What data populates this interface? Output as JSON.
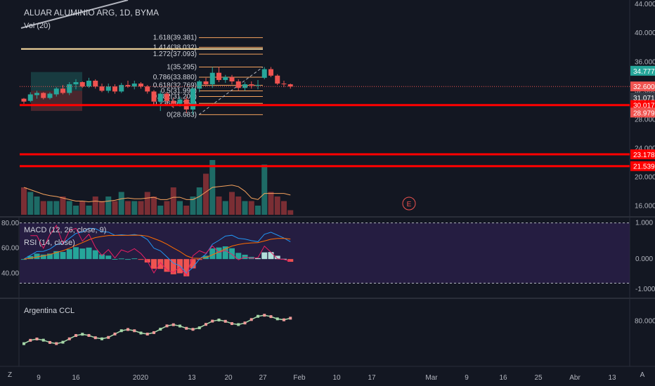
{
  "symbol_title": "ALUAR ALUMINIO ARG, 1D, BYMA",
  "volume_label": "Vol (20)",
  "macd_label": "MACD (12, 26, close, 9)",
  "rsi_label": "RSI (14, close)",
  "ccl_label": "Argentina CCL",
  "event_marker": "E",
  "colors": {
    "background": "#131722",
    "up": "#26a69a",
    "down": "#ef5350",
    "volume_up": "#1e6b66",
    "volume_down": "#7a2e34",
    "fib": "#f5a25d",
    "redline": "#ff0000",
    "rsi_band": "#2a1f4a",
    "ccl_line": "#a5d6a7"
  },
  "price_axis": [
    "44.000",
    "40.000",
    "36.000",
    "32.000",
    "28.000",
    "24.000",
    "20.000",
    "16.000"
  ],
  "macd_axis": [
    "1.000",
    "0.000",
    "-1.000"
  ],
  "rsi_axis": [
    "80.00",
    "60.00",
    "40.00"
  ],
  "ccl_axis": [
    "80.000"
  ],
  "badges": [
    {
      "label": "34.777",
      "price": 34.777,
      "color": "#26a69a"
    },
    {
      "label": "32.600",
      "price": 32.6,
      "color": "#ef5350"
    },
    {
      "label": "31.071",
      "price": 31.071,
      "color": "#363a45"
    },
    {
      "label": "30.017",
      "price": 30.017,
      "color": "#ff0000"
    },
    {
      "label": "28.979",
      "price": 28.979,
      "color": "#ef5350"
    },
    {
      "label": "23.178",
      "price": 23.178,
      "color": "#ff0000"
    },
    {
      "label": "21.539",
      "price": 21.539,
      "color": "#ff0000"
    }
  ],
  "fib_levels": [
    {
      "label": "1.618(39.381)",
      "price": 39.381
    },
    {
      "label": "1.414(38.032)",
      "price": 38.032
    },
    {
      "label": "1.272(37.093)",
      "price": 37.093
    },
    {
      "label": "1(35.295)",
      "price": 35.295
    },
    {
      "label": "0.786(33.880)",
      "price": 33.88
    },
    {
      "label": "0.618(32.769)",
      "price": 32.769
    },
    {
      "label": "0.5(31.990)",
      "price": 31.99
    },
    {
      "label": "0.382(31.208)",
      "price": 31.208
    },
    {
      "label": "0.236(30.253)",
      "price": 30.253
    },
    {
      "label": "0(28.683)",
      "price": 28.683
    }
  ],
  "x_axis_labels": [
    "9",
    "16",
    "2020",
    "13",
    "20",
    "27",
    "Feb",
    "10",
    "17",
    "Mar",
    "9",
    "16",
    "25",
    "Abr",
    "13"
  ],
  "chart_data": {
    "type": "candlestick",
    "title": "ALUAR ALUMINIO ARG, 1D, BYMA",
    "ohlc": [
      [
        30.9,
        31.0,
        30.2,
        30.5
      ],
      [
        30.6,
        31.8,
        30.4,
        31.5
      ],
      [
        31.4,
        32.0,
        30.9,
        31.7
      ],
      [
        31.7,
        31.8,
        30.8,
        31.0
      ],
      [
        31.0,
        31.8,
        30.8,
        31.6
      ],
      [
        31.5,
        32.5,
        31.2,
        32.3
      ],
      [
        32.3,
        32.8,
        31.5,
        31.7
      ],
      [
        31.7,
        33.2,
        31.4,
        32.9
      ],
      [
        32.9,
        33.6,
        32.2,
        33.2
      ],
      [
        33.2,
        33.3,
        32.4,
        32.6
      ],
      [
        32.6,
        33.8,
        32.4,
        33.4
      ],
      [
        33.4,
        33.6,
        32.3,
        32.6
      ],
      [
        32.6,
        33.0,
        31.8,
        32.0
      ],
      [
        32.0,
        33.0,
        31.7,
        32.6
      ],
      [
        32.6,
        32.9,
        31.6,
        31.9
      ],
      [
        31.9,
        33.1,
        31.7,
        32.8
      ],
      [
        32.8,
        33.4,
        32.4,
        32.6
      ],
      [
        32.6,
        33.4,
        32.2,
        33.0
      ],
      [
        33.0,
        33.2,
        32.3,
        32.6
      ],
      [
        32.6,
        32.8,
        31.6,
        31.9
      ],
      [
        31.9,
        32.1,
        30.2,
        30.5
      ],
      [
        30.5,
        32.0,
        29.2,
        31.6
      ],
      [
        31.6,
        31.8,
        30.3,
        30.6
      ],
      [
        30.6,
        31.0,
        29.6,
        30.2
      ],
      [
        30.2,
        31.2,
        29.8,
        30.8
      ],
      [
        30.8,
        31.2,
        28.9,
        29.4
      ],
      [
        29.4,
        32.5,
        28.7,
        32.3
      ],
      [
        32.3,
        33.5,
        31.8,
        33.3
      ],
      [
        33.3,
        33.8,
        32.6,
        32.9
      ],
      [
        32.9,
        35.3,
        32.4,
        34.5
      ],
      [
        34.5,
        35.3,
        33.2,
        33.5
      ],
      [
        33.5,
        34.2,
        33.1,
        33.9
      ],
      [
        33.9,
        34.2,
        32.9,
        33.3
      ],
      [
        33.3,
        33.6,
        32.0,
        32.4
      ],
      [
        32.4,
        33.2,
        32.0,
        32.9
      ],
      [
        32.9,
        33.3,
        32.3,
        32.7
      ],
      [
        32.7,
        33.5,
        32.2,
        32.8
      ],
      [
        33.8,
        35.3,
        33.6,
        35.0
      ],
      [
        35.0,
        35.3,
        33.9,
        34.1
      ],
      [
        34.1,
        34.3,
        32.8,
        33.0
      ],
      [
        33.0,
        33.4,
        32.5,
        32.9
      ],
      [
        32.9,
        33.0,
        32.3,
        32.6
      ]
    ],
    "volume": [
      6,
      5,
      4,
      3,
      3,
      3,
      4,
      3,
      2,
      3,
      2,
      4,
      3,
      4,
      3,
      5,
      3,
      3,
      3,
      5,
      4,
      2,
      3,
      6,
      3,
      2,
      4,
      6,
      9,
      12,
      4,
      3,
      5,
      4,
      3,
      3,
      2,
      11,
      5,
      4,
      3,
      1
    ],
    "horizontal_lines": [
      30.017,
      23.178,
      21.539
    ],
    "current_price": 32.6,
    "price_ylim": [
      14.5,
      44.6
    ],
    "rsi_ylim": [
      20,
      85
    ],
    "macd_ylim": [
      -1.3,
      1.4
    ]
  }
}
